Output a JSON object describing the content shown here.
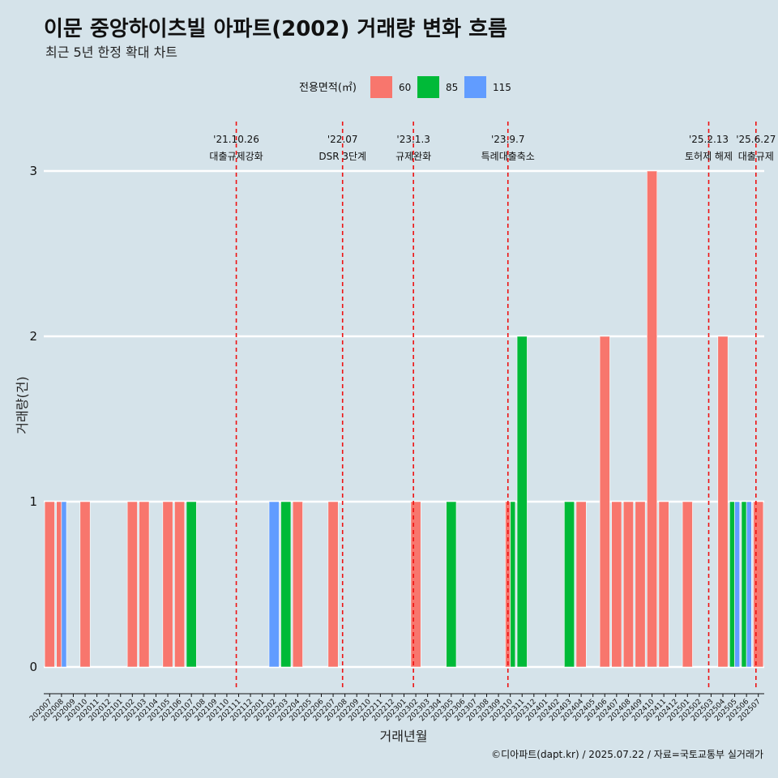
{
  "chart_data": {
    "type": "bar",
    "title": "이문 중앙하이츠빌 아파트(2002) 거래량 변화 흐름",
    "subtitle": "최근 5년 한정 확대 차트",
    "xlabel": "거래년월",
    "ylabel": "거래량(건)",
    "ylim": [
      0,
      3
    ],
    "yticks": [
      0,
      1,
      2,
      3
    ],
    "grid": "horizontal",
    "legend": {
      "title": "전용면적(㎡)",
      "position": "top",
      "entries": [
        {
          "name": "60",
          "color": "#f8766d"
        },
        {
          "name": "85",
          "color": "#00ba38"
        },
        {
          "name": "115",
          "color": "#619cff"
        }
      ]
    },
    "categories": [
      "202007",
      "202008",
      "202009",
      "202010",
      "202011",
      "202012",
      "202101",
      "202102",
      "202103",
      "202104",
      "202105",
      "202106",
      "202107",
      "202108",
      "202109",
      "202110",
      "202111",
      "202112",
      "202201",
      "202202",
      "202203",
      "202204",
      "202205",
      "202206",
      "202207",
      "202208",
      "202209",
      "202210",
      "202211",
      "202212",
      "202301",
      "202302",
      "202303",
      "202304",
      "202305",
      "202306",
      "202307",
      "202308",
      "202309",
      "202310",
      "202311",
      "202312",
      "202401",
      "202402",
      "202403",
      "202404",
      "202405",
      "202406",
      "202407",
      "202408",
      "202409",
      "202410",
      "202411",
      "202412",
      "202501",
      "202502",
      "202503",
      "202504",
      "202505",
      "202506",
      "202507"
    ],
    "bars": [
      {
        "month": "202007",
        "segments": [
          {
            "area": "60",
            "count": 1
          }
        ]
      },
      {
        "month": "202008",
        "segments": [
          {
            "area": "60",
            "count": 1
          },
          {
            "area": "115",
            "count": 1
          }
        ]
      },
      {
        "month": "202010",
        "segments": [
          {
            "area": "60",
            "count": 1
          }
        ]
      },
      {
        "month": "202102",
        "segments": [
          {
            "area": "60",
            "count": 1
          }
        ]
      },
      {
        "month": "202103",
        "segments": [
          {
            "area": "60",
            "count": 1
          }
        ]
      },
      {
        "month": "202105",
        "segments": [
          {
            "area": "60",
            "count": 1
          }
        ]
      },
      {
        "month": "202106",
        "segments": [
          {
            "area": "60",
            "count": 1
          }
        ]
      },
      {
        "month": "202107",
        "segments": [
          {
            "area": "85",
            "count": 1
          }
        ]
      },
      {
        "month": "202202",
        "segments": [
          {
            "area": "115",
            "count": 1
          }
        ]
      },
      {
        "month": "202203",
        "segments": [
          {
            "area": "85",
            "count": 1
          }
        ]
      },
      {
        "month": "202204",
        "segments": [
          {
            "area": "60",
            "count": 1
          }
        ]
      },
      {
        "month": "202207",
        "segments": [
          {
            "area": "60",
            "count": 1
          }
        ]
      },
      {
        "month": "202302",
        "segments": [
          {
            "area": "60",
            "count": 1
          }
        ]
      },
      {
        "month": "202305",
        "segments": [
          {
            "area": "85",
            "count": 1
          }
        ]
      },
      {
        "month": "202310",
        "segments": [
          {
            "area": "60",
            "count": 1
          },
          {
            "area": "85",
            "count": 1
          }
        ]
      },
      {
        "month": "202311",
        "segments": [
          {
            "area": "85",
            "count": 2
          }
        ]
      },
      {
        "month": "202403",
        "segments": [
          {
            "area": "85",
            "count": 1
          }
        ]
      },
      {
        "month": "202404",
        "segments": [
          {
            "area": "60",
            "count": 1
          }
        ]
      },
      {
        "month": "202406",
        "segments": [
          {
            "area": "60",
            "count": 2
          }
        ]
      },
      {
        "month": "202407",
        "segments": [
          {
            "area": "60",
            "count": 1
          }
        ]
      },
      {
        "month": "202408",
        "segments": [
          {
            "area": "60",
            "count": 1
          }
        ]
      },
      {
        "month": "202409",
        "segments": [
          {
            "area": "60",
            "count": 1
          }
        ]
      },
      {
        "month": "202410",
        "segments": [
          {
            "area": "60",
            "count": 3
          }
        ]
      },
      {
        "month": "202411",
        "segments": [
          {
            "area": "60",
            "count": 1
          }
        ]
      },
      {
        "month": "202501",
        "segments": [
          {
            "area": "60",
            "count": 1
          }
        ]
      },
      {
        "month": "202504",
        "segments": [
          {
            "area": "60",
            "count": 2
          }
        ]
      },
      {
        "month": "202505",
        "segments": [
          {
            "area": "85",
            "count": 1
          },
          {
            "area": "115",
            "count": 1
          }
        ]
      },
      {
        "month": "202506",
        "segments": [
          {
            "area": "85",
            "count": 1
          },
          {
            "area": "115",
            "count": 1
          }
        ]
      },
      {
        "month": "202507",
        "segments": [
          {
            "area": "60",
            "count": 1
          }
        ]
      }
    ],
    "events": [
      {
        "date": "'21.10.26",
        "label": "대출규제강화",
        "x": 15.8
      },
      {
        "date": "'22.07",
        "label": "DSR 3단계",
        "x": 24.8
      },
      {
        "date": "'23.1.3",
        "label": "규제완화",
        "x": 30.8
      },
      {
        "date": "'23.9.7",
        "label": "특례대출축소",
        "x": 38.8
      },
      {
        "date": "'25.2.13",
        "label": "토허제 해제",
        "x": 55.8
      },
      {
        "date": "'25.6.27",
        "label": "대출규제",
        "x": 59.8
      }
    ],
    "caption": "©디아파트(dapt.kr) / 2025.07.22 / 자료=국토교통부 실거래가"
  }
}
